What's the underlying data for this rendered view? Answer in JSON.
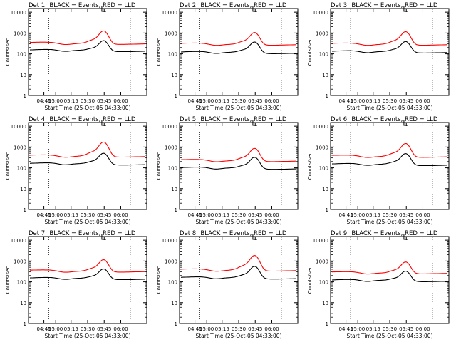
{
  "colors": {
    "events": "#000000",
    "lld": "#ff0000",
    "background": "#ffffff"
  },
  "common": {
    "ylabel": "Counts/sec",
    "xlabel": "Start Time (25-Oct-05 04:33:00)",
    "x_ticks": [
      "04:45",
      "05:00",
      "05:15",
      "05:30",
      "05:45",
      "06:00"
    ],
    "y_ticks": [
      "1",
      "10",
      "100",
      "1000",
      "10000"
    ],
    "yscale": "log",
    "ylim": [
      1,
      15000
    ]
  },
  "chart_data": [
    {
      "type": "line",
      "title": "Det 1r BLACK = Events, RED = LLD",
      "events_level": 150,
      "lld_level": 330,
      "peak_events": 430,
      "peak_lld": 1250
    },
    {
      "type": "line",
      "title": "Det 2r BLACK = Events, RED = LLD",
      "events_level": 120,
      "lld_level": 300,
      "peak_events": 370,
      "peak_lld": 1050
    },
    {
      "type": "line",
      "title": "Det 3r BLACK = Events, RED = LLD",
      "events_level": 130,
      "lld_level": 300,
      "peak_events": 390,
      "peak_lld": 1150
    },
    {
      "type": "line",
      "title": "Det 4r BLACK = Events, RED = LLD",
      "events_level": 160,
      "lld_level": 380,
      "peak_events": 500,
      "peak_lld": 1700
    },
    {
      "type": "line",
      "title": "Det 5r BLACK = Events, RED = LLD",
      "events_level": 100,
      "lld_level": 230,
      "peak_events": 320,
      "peak_lld": 850
    },
    {
      "type": "line",
      "title": "Det 6r BLACK = Events, RED = LLD",
      "events_level": 150,
      "lld_level": 370,
      "peak_events": 480,
      "peak_lld": 1450
    },
    {
      "type": "line",
      "title": "Det 7r BLACK = Events, RED = LLD",
      "events_level": 150,
      "lld_level": 340,
      "peak_events": 420,
      "peak_lld": 1150
    },
    {
      "type": "line",
      "title": "Det 8r BLACK = Events, RED = LLD",
      "events_level": 160,
      "lld_level": 380,
      "peak_events": 550,
      "peak_lld": 1800
    },
    {
      "type": "line",
      "title": "Det 9r BLACK = Events, RED = LLD",
      "events_level": 120,
      "lld_level": 280,
      "peak_events": 330,
      "peak_lld": 900
    }
  ]
}
